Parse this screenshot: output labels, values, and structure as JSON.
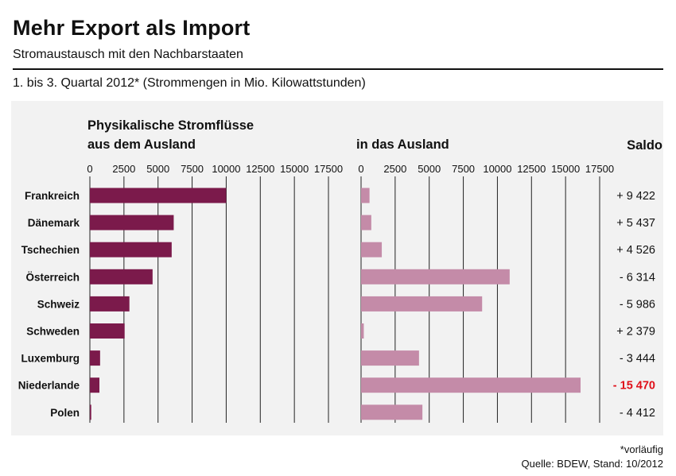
{
  "header": {
    "title": "Mehr Export als Import",
    "subtitle": "Stromaustausch mit den Nachbarstaaten",
    "period": "1. bis 3. Quartal 2012* (Strommengen in Mio. Kilowattstunden)"
  },
  "footer": {
    "note": "*vorläufig",
    "source": "Quelle: BDEW, Stand: 10/2012"
  },
  "colors": {
    "import_bar": "#7b1a4b",
    "export_bar": "#c48ba8",
    "negative_saldo": "#e0101a",
    "panel": "#f2f2f2"
  },
  "chart_data": {
    "type": "bar",
    "orientation": "horizontal",
    "categories": [
      "Frankreich",
      "Dänemark",
      "Tschechien",
      "Österreich",
      "Schweiz",
      "Schweden",
      "Luxemburg",
      "Niederlande",
      "Polen"
    ],
    "series": [
      {
        "name": "Physikalische Stromflüsse aus dem Ausland",
        "title_lines": [
          "Physikalische Stromflüsse",
          "aus dem Ausland"
        ],
        "values": [
          10000,
          6150,
          6000,
          4600,
          2900,
          2550,
          750,
          700,
          100
        ]
      },
      {
        "name": "in das Ausland",
        "title_lines": [
          "in  das Ausland"
        ],
        "values": [
          620,
          750,
          1520,
          10900,
          8880,
          200,
          4250,
          16100,
          4500
        ]
      }
    ],
    "saldo_header": "Saldo",
    "saldo": [
      "+ 9 422",
      "+ 5 437",
      "+ 4 526",
      "- 6 314",
      "- 5 986",
      "+ 2 379",
      "- 3 444",
      "- 15 470",
      "- 4 412"
    ],
    "saldo_highlight": [
      false,
      false,
      false,
      false,
      false,
      false,
      false,
      true,
      false
    ],
    "xticks": [
      "0",
      "2500",
      "5000",
      "7500",
      "10000",
      "12500",
      "15000",
      "17500"
    ],
    "xlim": [
      0,
      17500
    ],
    "grid": true
  }
}
